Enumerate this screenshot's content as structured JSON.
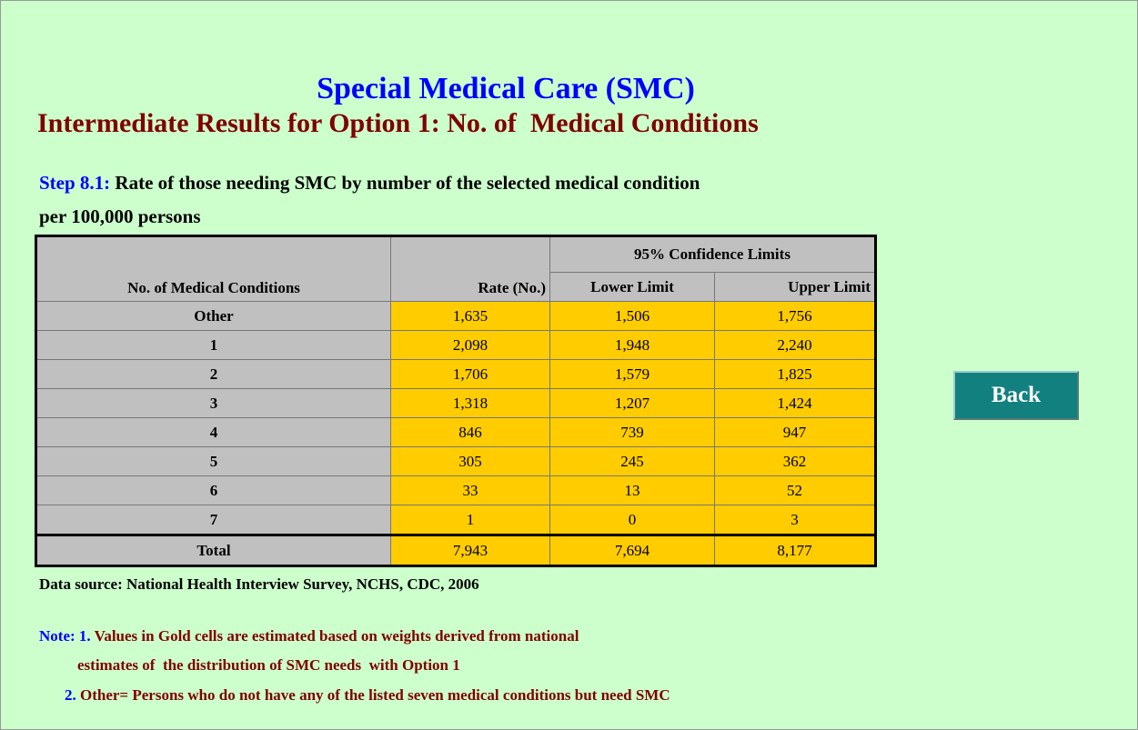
{
  "header": {
    "title": "Special Medical Care (SMC)",
    "subtitle": "Intermediate Results for Option 1: No. of  Medical Conditions"
  },
  "step": {
    "label": "Step 8.1:",
    "text": "Rate of those needing SMC by number of the selected medical condition",
    "text2": "per 100,000 persons"
  },
  "table": {
    "group_header": "95% Confidence Limits",
    "columns": [
      "No. of Medical Conditions",
      "Rate (No.)",
      "Lower Limit",
      "Upper Limit"
    ],
    "rows": [
      [
        "Other",
        "1,635",
        "1,506",
        "1,756"
      ],
      [
        "1",
        "2,098",
        "1,948",
        "2,240"
      ],
      [
        "2",
        "1,706",
        "1,579",
        "1,825"
      ],
      [
        "3",
        "1,318",
        "1,207",
        "1,424"
      ],
      [
        "4",
        "846",
        "739",
        "947"
      ],
      [
        "5",
        "305",
        "245",
        "362"
      ],
      [
        "6",
        "33",
        "13",
        "52"
      ],
      [
        "7",
        "1",
        "0",
        "3"
      ],
      [
        "Total",
        "7,943",
        "7,694",
        "8,177"
      ]
    ]
  },
  "source": "Data source: National Health Interview Survey, NCHS, CDC, 2006",
  "notes": {
    "label": "Note:",
    "items": [
      {
        "number": "1.",
        "text": "Values in Gold cells are estimated based on weights derived from national",
        "text2": "estimates of  the distribution of SMC needs  with Option 1"
      },
      {
        "number": "2.",
        "text": "Other= Persons who do not have any of the listed seven medical conditions but need SMC"
      }
    ]
  },
  "button": "Back"
}
